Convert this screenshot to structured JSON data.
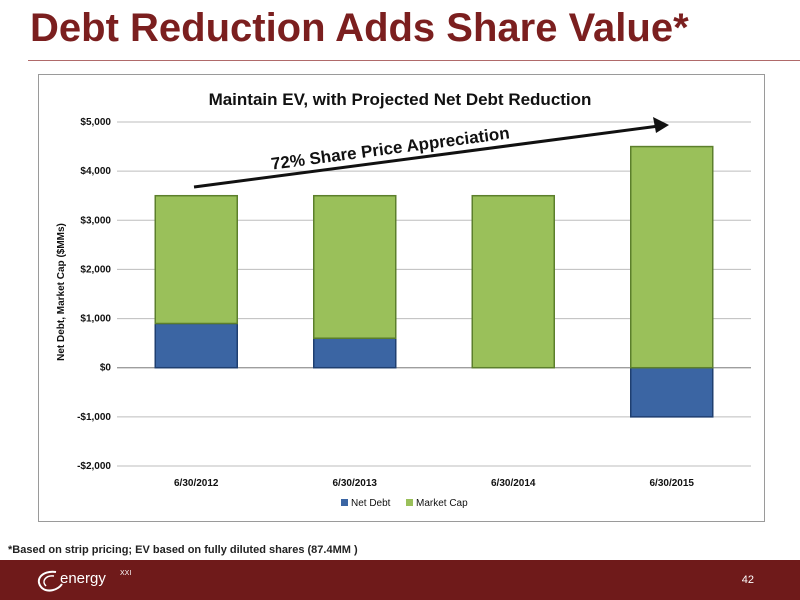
{
  "slide": {
    "title": "Debt Reduction Adds Share Value*",
    "footnote": "*Based on strip pricing; EV based on fully diluted shares (87.4MM )",
    "page_number": "42",
    "logo_text": "energy",
    "logo_sup": "XXI"
  },
  "colors": {
    "title": "#7b1f1f",
    "footer": "#6f1a1a",
    "net_debt": "#3b65a3",
    "market_cap": "#9ac05a"
  },
  "chart_data": {
    "type": "bar",
    "stacked": true,
    "title": "Maintain EV, with Projected Net Debt Reduction",
    "ylabel": "Net Debt, Market Cap ($MMs)",
    "xlabel": "",
    "categories": [
      "6/30/2012",
      "6/30/2013",
      "6/30/2014",
      "6/30/2015"
    ],
    "series": [
      {
        "name": "Net Debt",
        "values": [
          900,
          600,
          0,
          -1000
        ]
      },
      {
        "name": "Market Cap",
        "values": [
          2600,
          2900,
          3500,
          4500
        ]
      }
    ],
    "ylim": [
      -2000,
      5000
    ],
    "yticks": [
      -2000,
      -1000,
      0,
      1000,
      2000,
      3000,
      4000,
      5000
    ],
    "ytick_labels": [
      "-$2,000",
      "-$1,000",
      "$0",
      "$1,000",
      "$2,000",
      "$3,000",
      "$4,000",
      "$5,000"
    ],
    "grid": true,
    "legend": "bottom",
    "annotation": "72% Share Price Appreciation"
  }
}
